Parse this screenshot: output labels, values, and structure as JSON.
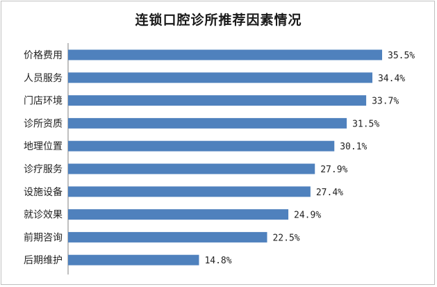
{
  "chart_data": {
    "type": "bar",
    "orientation": "horizontal",
    "title": "连锁口腔诊所推荐因素情况",
    "categories": [
      "价格费用",
      "人员服务",
      "门店环境",
      "诊所资质",
      "地理位置",
      "诊疗服务",
      "设施设备",
      "就诊效果",
      "前期咨询",
      "后期维护"
    ],
    "values": [
      35.5,
      34.4,
      33.7,
      31.5,
      30.1,
      27.9,
      27.4,
      24.9,
      22.5,
      14.8
    ],
    "value_labels": [
      "35.5%",
      "34.4%",
      "33.7%",
      "31.5%",
      "30.1%",
      "27.9%",
      "27.4%",
      "24.9%",
      "22.5%",
      "14.8%"
    ],
    "xlabel": "",
    "ylabel": "",
    "xlim": [
      0,
      40
    ],
    "grid": false,
    "legend": "none",
    "bar_color": "#4f81bd"
  }
}
